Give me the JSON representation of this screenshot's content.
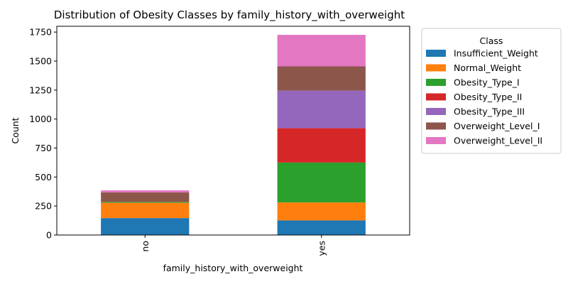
{
  "chart_data": {
    "type": "bar",
    "stacked": true,
    "title": "Distribution of Obesity Classes by family_history_with_overweight",
    "xlabel": "family_history_with_overweight",
    "ylabel": "Count",
    "categories": [
      "no",
      "yes"
    ],
    "ylim": [
      0,
      1800
    ],
    "yticks": [
      0,
      250,
      500,
      750,
      1000,
      1250,
      1500,
      1750
    ],
    "grid": false,
    "legend": {
      "title": "Class",
      "placement": "outside-right"
    },
    "series": [
      {
        "name": "Insufficient_Weight",
        "color": "#1f77b4",
        "values": [
          146,
          126
        ]
      },
      {
        "name": "Normal_Weight",
        "color": "#ff7f0e",
        "values": [
          132,
          155
        ]
      },
      {
        "name": "Obesity_Type_I",
        "color": "#2ca02c",
        "values": [
          7,
          344
        ]
      },
      {
        "name": "Obesity_Type_II",
        "color": "#d62728",
        "values": [
          1,
          296
        ]
      },
      {
        "name": "Obesity_Type_III",
        "color": "#9467bd",
        "values": [
          0,
          324
        ]
      },
      {
        "name": "Overweight_Level_I",
        "color": "#8c564b",
        "values": [
          81,
          209
        ]
      },
      {
        "name": "Overweight_Level_II",
        "color": "#e377c2",
        "values": [
          18,
          272
        ]
      }
    ]
  }
}
